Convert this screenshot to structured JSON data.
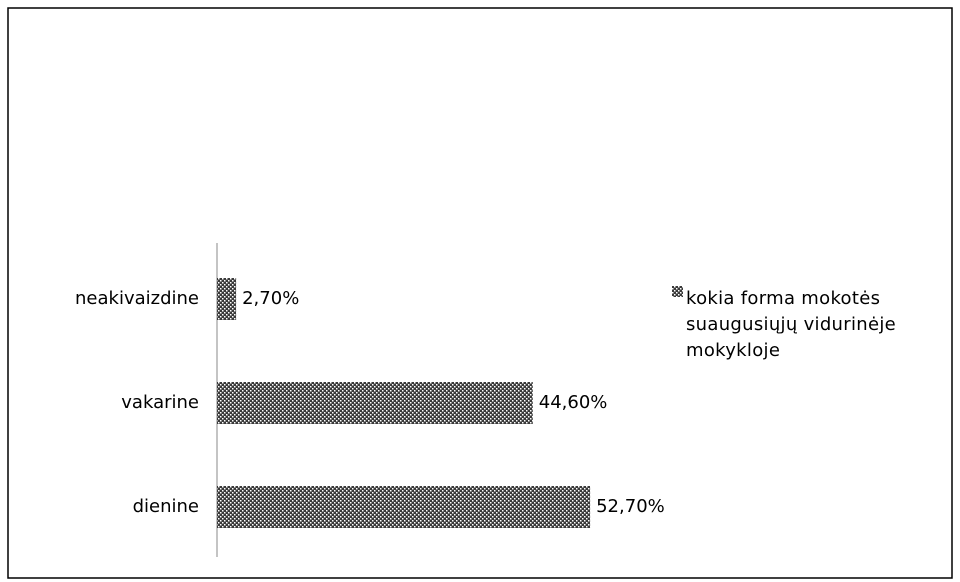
{
  "chart_data": {
    "type": "bar",
    "orientation": "horizontal",
    "categories": [
      "dienine",
      "vakarine",
      "neakivaizdine"
    ],
    "series": [
      {
        "name": "kokia forma mokotės suaugusiųjų vidurinėje mokykloje",
        "color": "#3a3a3a",
        "values": [
          52.7,
          44.6,
          2.7
        ],
        "value_labels": [
          "52,70%",
          "44,60%",
          "2,70%"
        ]
      }
    ],
    "legend": "right"
  }
}
